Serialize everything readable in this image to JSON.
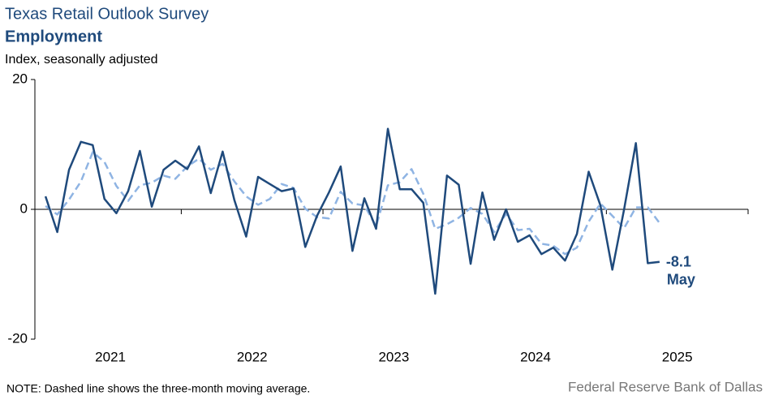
{
  "chart_data": {
    "type": "line",
    "title": "Texas Retail Outlook Survey",
    "subtitle": "Employment",
    "y_label": "Index, seasonally adjusted",
    "note": "NOTE: Dashed line shows the three-month  moving average.",
    "source": "Federal Reserve Bank of Dallas",
    "annotation": "May",
    "x": [
      2021.042,
      2021.125,
      2021.208,
      2021.292,
      2021.375,
      2021.458,
      2021.542,
      2021.625,
      2021.708,
      2021.792,
      2021.875,
      2021.958,
      2022.042,
      2022.125,
      2022.208,
      2022.292,
      2022.375,
      2022.458,
      2022.542,
      2022.625,
      2022.708,
      2022.792,
      2022.875,
      2022.958,
      2023.042,
      2023.125,
      2023.208,
      2023.292,
      2023.375,
      2023.458,
      2023.542,
      2023.625,
      2023.708,
      2023.792,
      2023.875,
      2023.958,
      2024.042,
      2024.125,
      2024.208,
      2024.292,
      2024.375,
      2024.458,
      2024.542,
      2024.625,
      2024.708,
      2024.792,
      2024.875,
      2024.958,
      2025.042,
      2025.125,
      2025.208,
      2025.292,
      2025.375
    ],
    "series": [
      {
        "color": "#1f4a7c",
        "dash": false,
        "values": [
          2.0,
          -3.5,
          6.1,
          10.4,
          9.9,
          1.6,
          -0.6,
          2.8,
          9.0,
          0.4,
          6.1,
          7.5,
          6.2,
          9.7,
          2.5,
          8.9,
          1.4,
          -4.2,
          5.0,
          3.9,
          2.8,
          3.2,
          -5.8,
          -1.0,
          2.6,
          6.6,
          -6.4,
          1.7,
          -3.0,
          12.4,
          3.1,
          3.1,
          1.0,
          -13.0,
          5.2,
          3.8,
          -8.4,
          2.6,
          -4.7,
          0,
          -5.0,
          -4.0,
          -6.9,
          -5.9,
          -7.9,
          -3.8,
          5.8,
          0.6,
          -9.3,
          0,
          10.2,
          -8.3,
          -8.1
        ]
      },
      {
        "color": "#8fb4e3",
        "dash": true,
        "values": [
          0.5,
          -0.8,
          1.5,
          4.3,
          8.8,
          7.3,
          3.6,
          1.3,
          3.7,
          4.1,
          5.2,
          4.7,
          6.6,
          7.8,
          6.1,
          7.0,
          4.3,
          2.0,
          0.7,
          1.6,
          3.9,
          3.3,
          0.1,
          -1.2,
          -1.4,
          2.7,
          0.9,
          0.6,
          -2.6,
          3.7,
          4.2,
          6.2,
          2.4,
          -3.0,
          -2.3,
          -1.3,
          0.2,
          -0.7,
          -3.5,
          -0.7,
          -3.2,
          -3.0,
          -5.3,
          -5.6,
          -6.9,
          -5.9,
          -1.9,
          0.9,
          -1.0,
          -2.9,
          0.3,
          0.3,
          -2.1
        ]
      }
    ],
    "xlim": [
      2020.967,
      2026
    ],
    "xticks": [
      {
        "value": 2021.5,
        "label": "2021"
      },
      {
        "value": 2022.5,
        "label": "2022"
      },
      {
        "value": 2023.5,
        "label": "2023"
      },
      {
        "value": 2024.5,
        "label": "2024"
      },
      {
        "value": 2025.5,
        "label": "2025"
      }
    ],
    "xminor": [
      2022,
      2023,
      2024,
      2025,
      2026
    ],
    "ylim": [
      -20,
      20
    ],
    "yticks": [
      -20,
      0,
      20
    ]
  }
}
